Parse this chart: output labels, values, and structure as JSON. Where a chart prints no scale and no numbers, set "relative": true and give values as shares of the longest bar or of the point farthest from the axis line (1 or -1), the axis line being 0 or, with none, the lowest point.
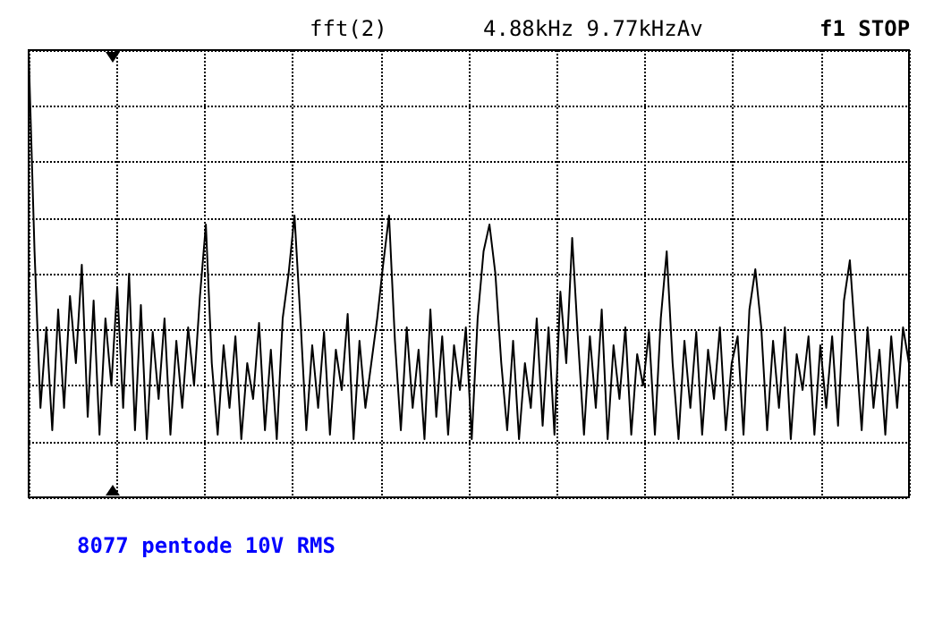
{
  "chart_data": {
    "type": "line",
    "relative": true,
    "annotations": [
      "fft(2)",
      "4.88kHz 9.77kHzAv",
      "f1 STOP",
      "8077 pentode 10V RMS"
    ],
    "categories": [
      null,
      null,
      null,
      null,
      null,
      null,
      null,
      null,
      null,
      null,
      null,
      null,
      null,
      null,
      null,
      null,
      null,
      null,
      null,
      null,
      null,
      null,
      null,
      null,
      null,
      null,
      null,
      null,
      null,
      null,
      null,
      null,
      null,
      null,
      null,
      null,
      null,
      null,
      null,
      null,
      null,
      null,
      null,
      null,
      null,
      null,
      null,
      null,
      null,
      null,
      null,
      null,
      null,
      null,
      null,
      null,
      null,
      null,
      null,
      null,
      null,
      null,
      null,
      null,
      null,
      null,
      null,
      null,
      null,
      null,
      null,
      null,
      null,
      null,
      null,
      null,
      null,
      null,
      null,
      null,
      null,
      null,
      null,
      null,
      null,
      null,
      null,
      null,
      null,
      null,
      null,
      null,
      null,
      null,
      null,
      null,
      null,
      null,
      null,
      null,
      null,
      null,
      null,
      null,
      null,
      null,
      null,
      null,
      null,
      null,
      null,
      null,
      null,
      null,
      null,
      null,
      null,
      null,
      null,
      null,
      null,
      null,
      null,
      null,
      null,
      null,
      null,
      null,
      null,
      null,
      null,
      null,
      null,
      null,
      null,
      null,
      null,
      null,
      null,
      null,
      null,
      null,
      null,
      null,
      null,
      null,
      null,
      null,
      null,
      null
    ],
    "series": [
      {
        "color": "#000000",
        "values": [
          1.0,
          0.55,
          0.2,
          0.38,
          0.15,
          0.42,
          0.2,
          0.45,
          0.3,
          0.52,
          0.18,
          0.44,
          0.14,
          0.4,
          0.25,
          0.47,
          0.2,
          0.5,
          0.15,
          0.43,
          0.13,
          0.37,
          0.22,
          0.4,
          0.14,
          0.35,
          0.2,
          0.38,
          0.25,
          0.45,
          0.61,
          0.3,
          0.14,
          0.34,
          0.2,
          0.36,
          0.13,
          0.3,
          0.22,
          0.39,
          0.15,
          0.33,
          0.13,
          0.4,
          0.5,
          0.63,
          0.4,
          0.15,
          0.34,
          0.2,
          0.37,
          0.14,
          0.33,
          0.24,
          0.41,
          0.13,
          0.35,
          0.2,
          0.3,
          0.4,
          0.52,
          0.63,
          0.35,
          0.15,
          0.38,
          0.2,
          0.33,
          0.13,
          0.42,
          0.18,
          0.36,
          0.14,
          0.34,
          0.24,
          0.38,
          0.13,
          0.4,
          0.55,
          0.61,
          0.5,
          0.3,
          0.15,
          0.35,
          0.13,
          0.3,
          0.2,
          0.4,
          0.16,
          0.38,
          0.14,
          0.46,
          0.3,
          0.58,
          0.35,
          0.14,
          0.36,
          0.2,
          0.42,
          0.13,
          0.34,
          0.22,
          0.38,
          0.14,
          0.32,
          0.25,
          0.37,
          0.14,
          0.4,
          0.55,
          0.3,
          0.13,
          0.35,
          0.2,
          0.37,
          0.14,
          0.33,
          0.22,
          0.38,
          0.15,
          0.3,
          0.36,
          0.14,
          0.42,
          0.51,
          0.38,
          0.15,
          0.35,
          0.2,
          0.38,
          0.13,
          0.32,
          0.24,
          0.36,
          0.14,
          0.34,
          0.2,
          0.36,
          0.16,
          0.44,
          0.53,
          0.34,
          0.15,
          0.38,
          0.2,
          0.33,
          0.14,
          0.36,
          0.2,
          0.38,
          0.3
        ]
      }
    ],
    "grid": true,
    "marker": "none",
    "line_style": "solid"
  }
}
